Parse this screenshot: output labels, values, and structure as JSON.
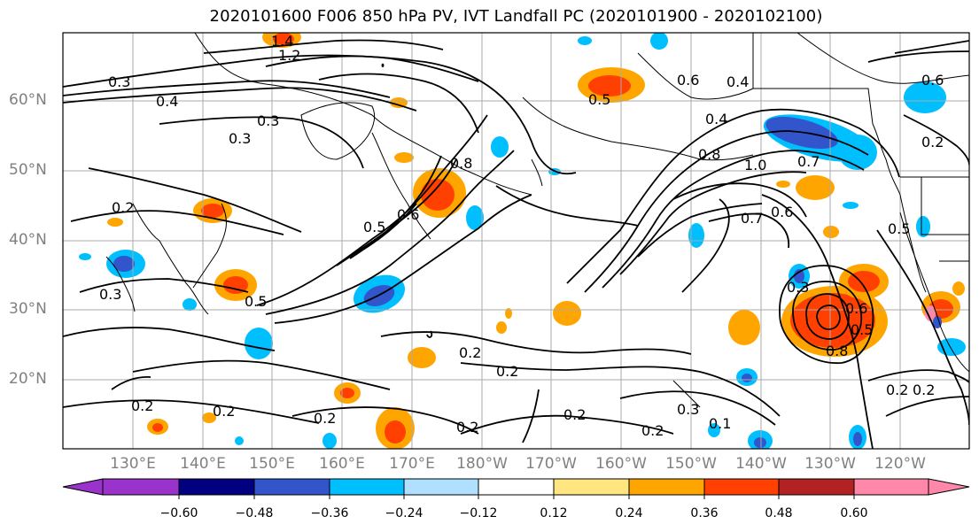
{
  "figure": {
    "title": "2020101600 F006 850 hPa PV, IVT Landfall PC (2020101900 - 2020102100)",
    "lat_labels": [
      "60°N",
      "50°N",
      "40°N",
      "30°N",
      "20°N"
    ],
    "lon_labels": [
      "130°E",
      "140°E",
      "150°E",
      "160°E",
      "170°E",
      "180°W",
      "170°W",
      "160°W",
      "150°W",
      "140°W",
      "130°W",
      "120°W"
    ]
  },
  "contour_labels": [
    "0.4",
    "0.3",
    "0.3",
    "0.3",
    "0.2",
    "0.5",
    "0.5",
    "0.6",
    "0.8",
    "0.5",
    "0.4",
    "0.6",
    "0.4",
    "0.8",
    "1.0",
    "0.7",
    "0.6",
    "0.7",
    "0.5",
    "0.6",
    "0.3",
    "0.8",
    "0.5",
    "0.2",
    "0.2",
    "0.2",
    "0.2",
    "0.2",
    "0.3",
    "0.2",
    "0.1",
    "0.2",
    "0.2",
    "0.2",
    "1.4",
    "1.2",
    "0.6",
    "0.2",
    "0.2",
    "0.3"
  ],
  "colorbar": {
    "ticks": [
      "−0.60",
      "−0.48",
      "−0.36",
      "−0.24",
      "−0.12",
      "0.12",
      "0.24",
      "0.36",
      "0.48",
      "0.60"
    ],
    "colors": [
      "#9933cc",
      "#000080",
      "#3355cc",
      "#00bfff",
      "#b0e0ff",
      "#ffffff",
      "#ffe680",
      "#ffa500",
      "#ff4000",
      "#b22222",
      "#ff88aa"
    ]
  }
}
